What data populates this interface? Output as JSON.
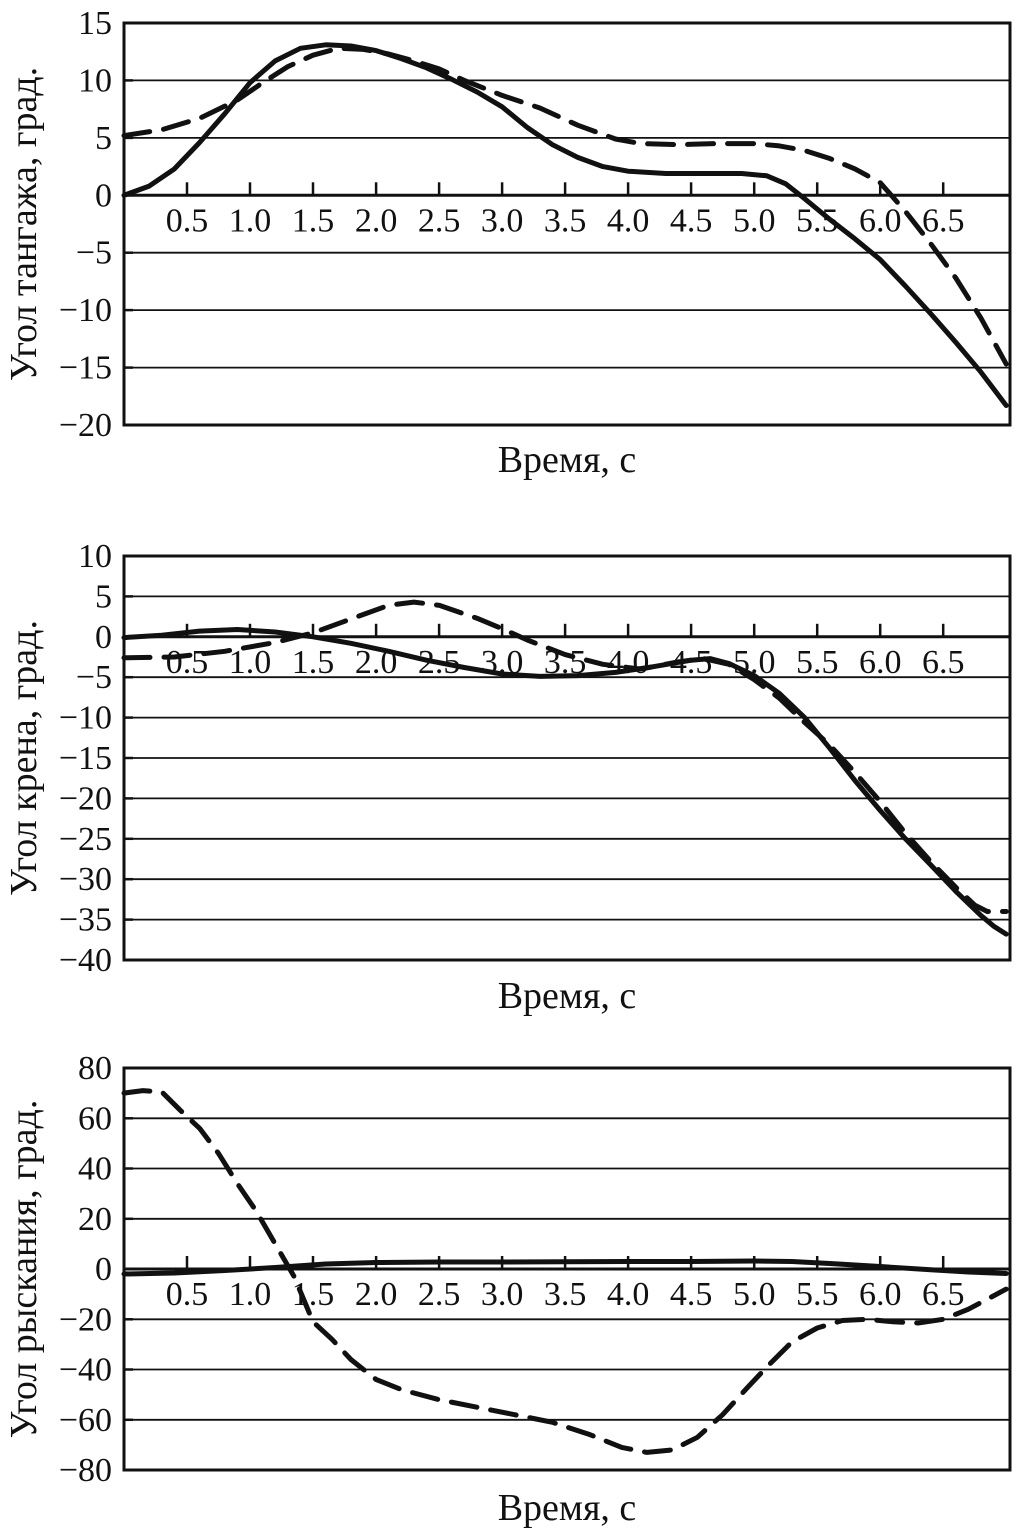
{
  "page": {
    "background": "#ffffff",
    "ink": "#111111"
  },
  "chart_data": [
    {
      "id": "pitch",
      "type": "line",
      "title": "",
      "ylabel": "Угол тангажа, град.",
      "xlabel": "Время, с",
      "xlim": [
        0,
        7.03
      ],
      "ylim": [
        -20,
        15
      ],
      "grid": true,
      "legend": "none",
      "yticks": {
        "values": [
          15,
          10,
          5,
          0,
          -5,
          -10,
          -15,
          -20
        ],
        "labels": [
          "15",
          "10",
          "5",
          "0",
          "−5",
          "−10",
          "−15",
          "−20"
        ]
      },
      "xticks": {
        "values": [
          0.5,
          1.0,
          1.5,
          2.0,
          2.5,
          3.0,
          3.5,
          4.0,
          4.5,
          5.0,
          5.5,
          6.0,
          6.5
        ],
        "labels": [
          "0.5",
          "1.0",
          "1.5",
          "2.0",
          "2.5",
          "3.0",
          "3.5",
          "4.0",
          "4.5",
          "5.0",
          "5.5",
          "6.0",
          "6.5"
        ]
      },
      "series": [
        {
          "name": "solid-curve",
          "style": "solid",
          "points": [
            [
              0,
              0
            ],
            [
              0.2,
              0.8
            ],
            [
              0.4,
              2.3
            ],
            [
              0.6,
              4.6
            ],
            [
              0.8,
              7.1
            ],
            [
              1.0,
              9.8
            ],
            [
              1.2,
              11.7
            ],
            [
              1.4,
              12.8
            ],
            [
              1.6,
              13.1
            ],
            [
              1.8,
              13.0
            ],
            [
              2.0,
              12.6
            ],
            [
              2.2,
              11.9
            ],
            [
              2.4,
              11.1
            ],
            [
              2.6,
              10.1
            ],
            [
              2.8,
              9.0
            ],
            [
              3.0,
              7.7
            ],
            [
              3.2,
              5.9
            ],
            [
              3.4,
              4.4
            ],
            [
              3.6,
              3.3
            ],
            [
              3.8,
              2.5
            ],
            [
              4.0,
              2.1
            ],
            [
              4.3,
              1.9
            ],
            [
              4.6,
              1.9
            ],
            [
              4.9,
              1.9
            ],
            [
              5.1,
              1.7
            ],
            [
              5.25,
              1.0
            ],
            [
              5.4,
              -0.3
            ],
            [
              5.6,
              -2.1
            ],
            [
              5.8,
              -3.8
            ],
            [
              6.0,
              -5.6
            ],
            [
              6.2,
              -7.9
            ],
            [
              6.4,
              -10.3
            ],
            [
              6.6,
              -12.8
            ],
            [
              6.8,
              -15.4
            ],
            [
              7.0,
              -18.3
            ]
          ]
        },
        {
          "name": "dashed-curve",
          "style": "dashed",
          "points": [
            [
              0,
              5.2
            ],
            [
              0.3,
              5.7
            ],
            [
              0.6,
              6.7
            ],
            [
              0.9,
              8.3
            ],
            [
              1.1,
              9.8
            ],
            [
              1.3,
              11.2
            ],
            [
              1.5,
              12.2
            ],
            [
              1.7,
              12.8
            ],
            [
              1.9,
              12.7
            ],
            [
              2.1,
              12.3
            ],
            [
              2.3,
              11.7
            ],
            [
              2.5,
              11.0
            ],
            [
              2.7,
              10.0
            ],
            [
              3.0,
              8.7
            ],
            [
              3.3,
              7.6
            ],
            [
              3.6,
              6.1
            ],
            [
              3.9,
              4.9
            ],
            [
              4.1,
              4.5
            ],
            [
              4.4,
              4.4
            ],
            [
              4.7,
              4.5
            ],
            [
              5.0,
              4.5
            ],
            [
              5.2,
              4.3
            ],
            [
              5.4,
              3.9
            ],
            [
              5.6,
              3.2
            ],
            [
              5.8,
              2.3
            ],
            [
              6.0,
              1.1
            ],
            [
              6.2,
              -1.4
            ],
            [
              6.4,
              -4.2
            ],
            [
              6.6,
              -7.2
            ],
            [
              6.8,
              -10.7
            ],
            [
              7.0,
              -14.7
            ]
          ]
        }
      ]
    },
    {
      "id": "roll",
      "type": "line",
      "title": "",
      "ylabel": "Угол крена, град.",
      "xlabel": "Время, с",
      "xlim": [
        0,
        7.03
      ],
      "ylim": [
        -40,
        10
      ],
      "grid": true,
      "legend": "none",
      "yticks": {
        "values": [
          10,
          5,
          0,
          -5,
          -10,
          -15,
          -20,
          -25,
          -30,
          -35,
          -40
        ],
        "labels": [
          "10",
          "5",
          "0",
          "−5",
          "−10",
          "−15",
          "−20",
          "−25",
          "−30",
          "−35",
          "−40"
        ]
      },
      "xticks": {
        "values": [
          0.5,
          1.0,
          1.5,
          2.0,
          2.5,
          3.0,
          3.5,
          4.0,
          4.5,
          5.0,
          5.5,
          6.0,
          6.5
        ],
        "labels": [
          "0.5",
          "1.0",
          "1.5",
          "2.0",
          "2.5",
          "3.0",
          "3.5",
          "4.0",
          "4.5",
          "5.0",
          "5.5",
          "6.0",
          "6.5"
        ]
      },
      "series": [
        {
          "name": "solid-curve",
          "style": "solid",
          "points": [
            [
              0,
              -0.1
            ],
            [
              0.3,
              0.2
            ],
            [
              0.6,
              0.7
            ],
            [
              0.9,
              0.9
            ],
            [
              1.2,
              0.6
            ],
            [
              1.5,
              0.0
            ],
            [
              1.8,
              -0.8
            ],
            [
              2.1,
              -1.8
            ],
            [
              2.4,
              -2.9
            ],
            [
              2.7,
              -3.8
            ],
            [
              3.0,
              -4.6
            ],
            [
              3.3,
              -4.9
            ],
            [
              3.6,
              -4.8
            ],
            [
              3.9,
              -4.4
            ],
            [
              4.2,
              -3.7
            ],
            [
              4.5,
              -2.9
            ],
            [
              4.65,
              -2.7
            ],
            [
              4.8,
              -3.3
            ],
            [
              5.0,
              -4.8
            ],
            [
              5.2,
              -7.0
            ],
            [
              5.4,
              -10.0
            ],
            [
              5.6,
              -13.8
            ],
            [
              5.8,
              -17.8
            ],
            [
              6.0,
              -21.5
            ],
            [
              6.2,
              -25.0
            ],
            [
              6.4,
              -28.2
            ],
            [
              6.6,
              -31.5
            ],
            [
              6.8,
              -34.5
            ],
            [
              6.9,
              -35.8
            ],
            [
              7.0,
              -36.8
            ]
          ]
        },
        {
          "name": "dashed-curve",
          "style": "dashed",
          "points": [
            [
              0,
              -2.6
            ],
            [
              0.4,
              -2.5
            ],
            [
              0.8,
              -1.8
            ],
            [
              1.2,
              -0.7
            ],
            [
              1.5,
              0.5
            ],
            [
              1.8,
              2.2
            ],
            [
              2.1,
              3.9
            ],
            [
              2.3,
              4.3
            ],
            [
              2.5,
              3.9
            ],
            [
              2.8,
              2.3
            ],
            [
              3.0,
              1.0
            ],
            [
              3.2,
              -0.4
            ],
            [
              3.5,
              -2.2
            ],
            [
              3.8,
              -3.4
            ],
            [
              4.1,
              -4.0
            ],
            [
              4.4,
              -3.1
            ],
            [
              4.6,
              -2.7
            ],
            [
              4.8,
              -3.4
            ],
            [
              5.0,
              -5.3
            ],
            [
              5.2,
              -7.6
            ],
            [
              5.4,
              -10.6
            ],
            [
              5.6,
              -13.4
            ],
            [
              5.8,
              -16.8
            ],
            [
              6.0,
              -20.4
            ],
            [
              6.2,
              -24.3
            ],
            [
              6.4,
              -27.8
            ],
            [
              6.6,
              -31.0
            ],
            [
              6.75,
              -33.2
            ],
            [
              6.85,
              -34.0
            ],
            [
              7.0,
              -34.0
            ]
          ]
        }
      ]
    },
    {
      "id": "yaw",
      "type": "line",
      "title": "",
      "ylabel": "Угол рыскания, град.",
      "xlabel": "Время, с",
      "xlim": [
        0,
        7.03
      ],
      "ylim": [
        -80,
        80
      ],
      "grid": true,
      "legend": "none",
      "yticks": {
        "values": [
          80,
          60,
          40,
          20,
          0,
          -20,
          -40,
          -60,
          -80
        ],
        "labels": [
          "80",
          "60",
          "40",
          "20",
          "0",
          "−20",
          "−40",
          "−60",
          "−80"
        ]
      },
      "xticks": {
        "values": [
          0.5,
          1.0,
          1.5,
          2.0,
          2.5,
          3.0,
          3.5,
          4.0,
          4.5,
          5.0,
          5.5,
          6.0,
          6.5
        ],
        "labels": [
          "0.5",
          "1.0",
          "1.5",
          "2.0",
          "2.5",
          "3.0",
          "3.5",
          "4.0",
          "4.5",
          "5.0",
          "5.5",
          "6.0",
          "6.5"
        ]
      },
      "series": [
        {
          "name": "solid-curve",
          "style": "solid",
          "points": [
            [
              0,
              -2.0
            ],
            [
              0.4,
              -1.6
            ],
            [
              0.8,
              -0.6
            ],
            [
              1.2,
              0.6
            ],
            [
              1.6,
              2.0
            ],
            [
              2.0,
              2.6
            ],
            [
              2.5,
              2.8
            ],
            [
              3.0,
              2.8
            ],
            [
              3.5,
              2.9
            ],
            [
              4.0,
              3.0
            ],
            [
              4.5,
              3.0
            ],
            [
              5.0,
              3.2
            ],
            [
              5.3,
              3.0
            ],
            [
              5.6,
              2.2
            ],
            [
              6.0,
              1.0
            ],
            [
              6.4,
              -0.3
            ],
            [
              6.7,
              -1.2
            ],
            [
              7.0,
              -1.8
            ]
          ]
        },
        {
          "name": "dashed-curve",
          "style": "dashed",
          "points": [
            [
              0,
              70
            ],
            [
              0.15,
              71
            ],
            [
              0.3,
              70.5
            ],
            [
              0.45,
              63
            ],
            [
              0.6,
              56
            ],
            [
              0.75,
              46
            ],
            [
              0.9,
              34
            ],
            [
              1.05,
              23
            ],
            [
              1.2,
              10
            ],
            [
              1.35,
              -3
            ],
            [
              1.5,
              -21
            ],
            [
              1.65,
              -28
            ],
            [
              1.8,
              -36
            ],
            [
              2.0,
              -44
            ],
            [
              2.2,
              -48
            ],
            [
              2.5,
              -52
            ],
            [
              2.8,
              -55
            ],
            [
              3.1,
              -58
            ],
            [
              3.4,
              -61
            ],
            [
              3.7,
              -66
            ],
            [
              3.95,
              -71
            ],
            [
              4.15,
              -73
            ],
            [
              4.35,
              -72
            ],
            [
              4.55,
              -67
            ],
            [
              4.75,
              -58
            ],
            [
              4.95,
              -47
            ],
            [
              5.1,
              -39
            ],
            [
              5.3,
              -29
            ],
            [
              5.5,
              -23.5
            ],
            [
              5.7,
              -20.5
            ],
            [
              5.9,
              -20
            ],
            [
              6.1,
              -21
            ],
            [
              6.3,
              -21.5
            ],
            [
              6.5,
              -20
            ],
            [
              6.7,
              -16
            ],
            [
              6.85,
              -12
            ],
            [
              7.0,
              -8
            ]
          ]
        }
      ]
    }
  ]
}
